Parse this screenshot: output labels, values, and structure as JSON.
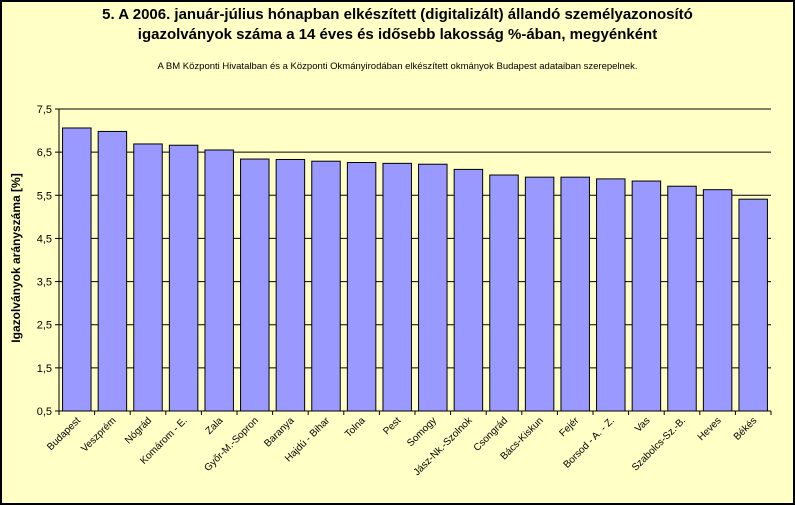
{
  "chart_data": {
    "type": "bar",
    "title": "5. A 2006. január-július hónapban elkészített (digitalizált) állandó személyazonosító",
    "title_line2": "igazolványok száma a 14 éves és idősebb lakosság %-ában, megyénként",
    "subtitle": "A BM Központi Hivatalban és a Központi Okmányirodában elkészített  okmányok Budapest adataiban szerepelnek.",
    "ylabel": "Igazolványok arányszáma [%]",
    "xlabel": "",
    "ylim": [
      0.5,
      7.5
    ],
    "yticks": [
      "0,5",
      "1,5",
      "2,5",
      "3,5",
      "4,5",
      "5,5",
      "6,5",
      "7,5"
    ],
    "ytick_values": [
      0.5,
      1.5,
      2.5,
      3.5,
      4.5,
      5.5,
      6.5,
      7.5
    ],
    "grid": true,
    "bar_color": "#9999ff",
    "categories": [
      "Budapest",
      "Veszprém",
      "Nógrád",
      "Komárom - E.",
      "Zala",
      "Győr-M.-Sopron",
      "Baranya",
      "Hajdú - Bihar",
      "Tolna",
      "Pest",
      "Somogy",
      "Jász-Nk.-Szolnok",
      "Csongrád",
      "Bács-Kiskun",
      "Fejér",
      "Borsod - A. - Z.",
      "Vas",
      "Szabolcs-Sz.-B.",
      "Heves",
      "Békés"
    ],
    "values": [
      7.06,
      6.98,
      6.69,
      6.66,
      6.55,
      6.34,
      6.33,
      6.29,
      6.26,
      6.24,
      6.22,
      6.1,
      5.97,
      5.92,
      5.92,
      5.88,
      5.83,
      5.71,
      5.63,
      5.41
    ]
  }
}
